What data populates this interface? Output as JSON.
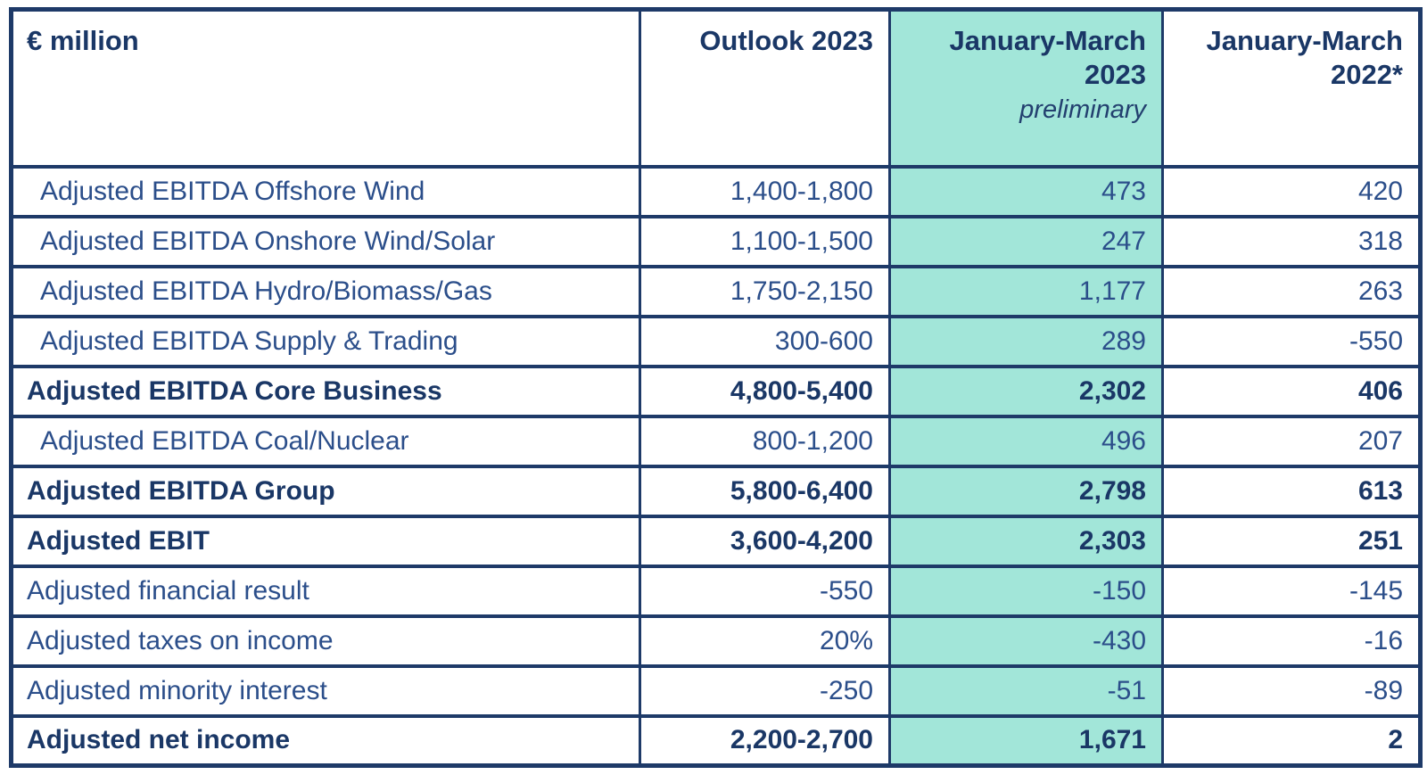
{
  "chart_data": {
    "type": "table",
    "title": "",
    "units_label": "€ million",
    "layout": {
      "highlight_column": "jan_mar_2023",
      "highlight_color": "#a2e6d9",
      "border_color": "#1e3a68",
      "text_color_regular": "#2b4e8a",
      "text_color_bold": "#1a3766"
    },
    "header": {
      "metric_label": "€ million",
      "col_outlook": {
        "label": "Outlook 2023"
      },
      "col_q1_2023": {
        "label_line1": "January-March",
        "label_line2": "2023",
        "sublabel": "preliminary",
        "highlighted": true
      },
      "col_q1_2022": {
        "label_line1": "January-March",
        "label_line2": "2022*"
      }
    },
    "rows": [
      {
        "label": "Adjusted EBITDA Offshore Wind",
        "outlook": "1,400-1,800",
        "q1_2023": "473",
        "q1_2022": "420",
        "style": "indent"
      },
      {
        "label": "Adjusted EBITDA Onshore Wind/Solar",
        "outlook": "1,100-1,500",
        "q1_2023": "247",
        "q1_2022": "318",
        "style": "indent"
      },
      {
        "label": "Adjusted EBITDA Hydro/Biomass/Gas",
        "outlook": "1,750-2,150",
        "q1_2023": "1,177",
        "q1_2022": "263",
        "style": "indent"
      },
      {
        "label": "Adjusted EBITDA Supply & Trading",
        "outlook": "300-600",
        "q1_2023": "289",
        "q1_2022": "-550",
        "style": "indent"
      },
      {
        "label": "Adjusted EBITDA Core Business",
        "outlook": "4,800-5,400",
        "q1_2023": "2,302",
        "q1_2022": "406",
        "style": "bold"
      },
      {
        "label": "Adjusted EBITDA Coal/Nuclear",
        "outlook": "800-1,200",
        "q1_2023": "496",
        "q1_2022": "207",
        "style": "indent"
      },
      {
        "label": "Adjusted EBITDA Group",
        "outlook": "5,800-6,400",
        "q1_2023": "2,798",
        "q1_2022": "613",
        "style": "bold"
      },
      {
        "label": "Adjusted EBIT",
        "outlook": "3,600-4,200",
        "q1_2023": "2,303",
        "q1_2022": "251",
        "style": "bold"
      },
      {
        "label": "Adjusted financial result",
        "outlook": "-550",
        "q1_2023": "-150",
        "q1_2022": "-145",
        "style": "normal"
      },
      {
        "label": "Adjusted taxes on income",
        "outlook": "20%",
        "q1_2023": "-430",
        "q1_2022": "-16",
        "style": "normal"
      },
      {
        "label": "Adjusted minority interest",
        "outlook": "-250",
        "q1_2023": "-51",
        "q1_2022": "-89",
        "style": "normal"
      },
      {
        "label": "Adjusted net income",
        "outlook": "2,200-2,700",
        "q1_2023": "1,671",
        "q1_2022": "2",
        "style": "bold"
      }
    ]
  }
}
